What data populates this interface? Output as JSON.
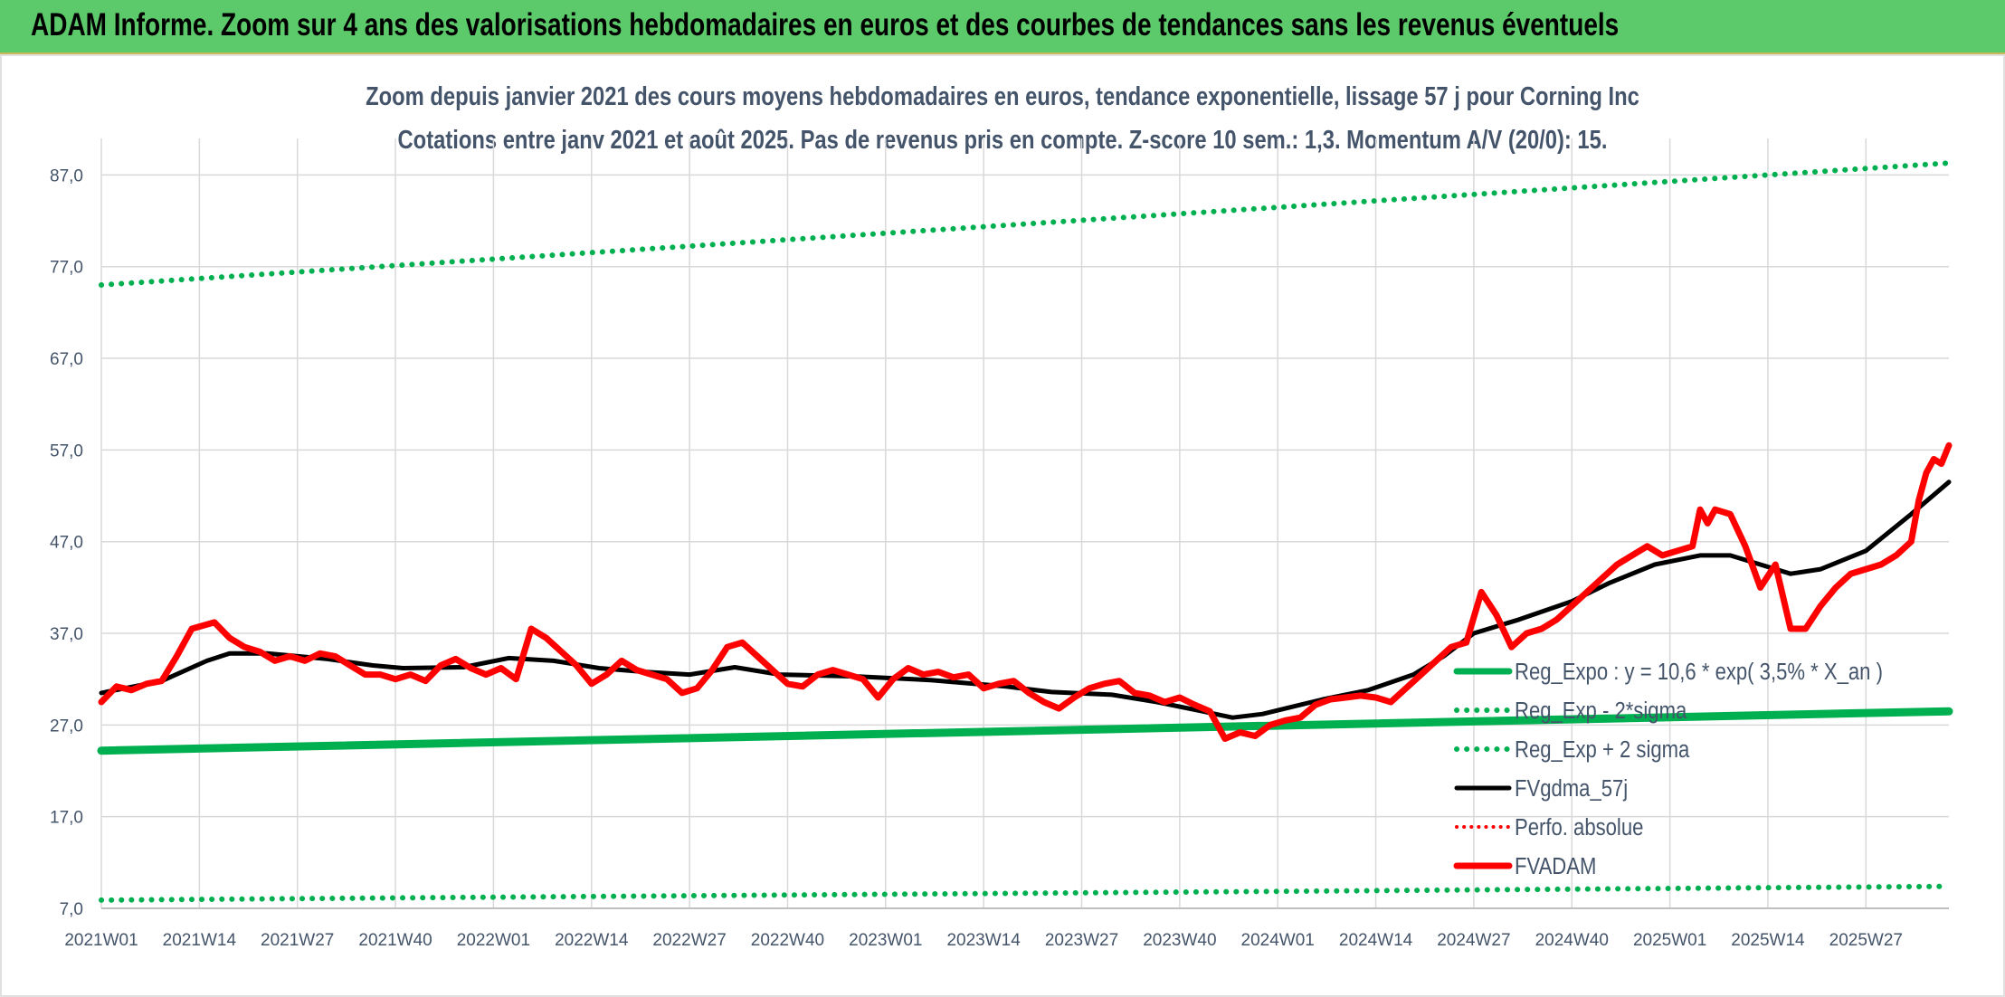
{
  "banner": {
    "title": "ADAM Informe. Zoom sur 4 ans des valorisations hebdomadaires en euros et des courbes de tendances sans les revenus éventuels"
  },
  "colors": {
    "banner": "#5cc96a",
    "reg_expo": "#00b050",
    "fvgdma": "#000000",
    "fvadam": "#ff0000",
    "perfo": "#ff0000",
    "grid": "#d9d9d9",
    "text": "#44546a"
  },
  "chart_data": {
    "type": "line",
    "title": "Zoom depuis janvier 2021 des cours moyens hebdomadaires en euros, tendance exponentielle, lissage 57 j pour Corning Inc",
    "subtitle": "Cotations entre janv 2021 et août 2025. Pas de revenus pris en compte. Z-score 10 sem.: 1,3. Momentum A/V (20/0): 15.",
    "xlabel": "",
    "ylabel": "",
    "ylim": [
      7,
      90
    ],
    "yticks": [
      7,
      17,
      27,
      37,
      47,
      57,
      67,
      77,
      87
    ],
    "ytick_labels": [
      "7,0",
      "17,0",
      "27,0",
      "37,0",
      "47,0",
      "57,0",
      "67,0",
      "77,0",
      "87,0"
    ],
    "grid": true,
    "legend_position": "bottom-right",
    "x_week_count": 245,
    "x_tick_labels": [
      "2021W01",
      "2021W14",
      "2021W27",
      "2021W40",
      "2022W01",
      "2022W14",
      "2022W27",
      "2022W40",
      "2023W01",
      "2023W14",
      "2023W27",
      "2023W40",
      "2024W01",
      "2024W14",
      "2024W27",
      "2024W40",
      "2025W01",
      "2025W14",
      "2025W27"
    ],
    "x_tick_week_index": [
      0,
      13,
      26,
      39,
      52,
      65,
      78,
      91,
      104,
      117,
      130,
      143,
      156,
      169,
      182,
      195,
      208,
      221,
      234
    ],
    "series": [
      {
        "name": "Reg_Expo : y = 10,6 * exp( 3,5% *  X_an )",
        "style": "solid-thick",
        "points": [
          [
            0,
            24.2
          ],
          [
            245,
            28.5
          ]
        ]
      },
      {
        "name": "Reg_Exp - 2*sigma",
        "style": "dotted",
        "points": [
          [
            0,
            7.9
          ],
          [
            245,
            9.4
          ]
        ]
      },
      {
        "name": "Reg_Exp + 2 sigma",
        "style": "dotted",
        "points": [
          [
            0,
            75.0
          ],
          [
            245,
            88.3
          ]
        ]
      },
      {
        "name": "FVgdma_57j",
        "style": "solid",
        "points": [
          [
            0,
            30.5
          ],
          [
            8,
            31.8
          ],
          [
            14,
            34.0
          ],
          [
            17,
            34.8
          ],
          [
            22,
            34.8
          ],
          [
            30,
            34.2
          ],
          [
            36,
            33.5
          ],
          [
            40,
            33.2
          ],
          [
            48,
            33.3
          ],
          [
            54,
            34.3
          ],
          [
            60,
            34.0
          ],
          [
            66,
            33.2
          ],
          [
            72,
            32.8
          ],
          [
            78,
            32.5
          ],
          [
            84,
            33.3
          ],
          [
            90,
            32.5
          ],
          [
            100,
            32.3
          ],
          [
            110,
            31.9
          ],
          [
            120,
            31.2
          ],
          [
            126,
            30.6
          ],
          [
            134,
            30.3
          ],
          [
            140,
            29.5
          ],
          [
            146,
            28.5
          ],
          [
            150,
            27.8
          ],
          [
            154,
            28.2
          ],
          [
            158,
            29.0
          ],
          [
            162,
            29.8
          ],
          [
            168,
            30.8
          ],
          [
            174,
            32.5
          ],
          [
            178,
            34.5
          ],
          [
            182,
            37.0
          ],
          [
            188,
            38.5
          ],
          [
            195,
            40.5
          ],
          [
            200,
            42.5
          ],
          [
            206,
            44.5
          ],
          [
            212,
            45.5
          ],
          [
            216,
            45.5
          ],
          [
            220,
            44.5
          ],
          [
            224,
            43.5
          ],
          [
            228,
            44.0
          ],
          [
            234,
            46.0
          ],
          [
            240,
            50.0
          ],
          [
            245,
            53.5
          ]
        ]
      },
      {
        "name": "Perfo. absolue",
        "style": "dotted",
        "points": []
      },
      {
        "name": "FVADAM",
        "style": "solid-thick",
        "points": [
          [
            0,
            29.5
          ],
          [
            2,
            31.2
          ],
          [
            4,
            30.8
          ],
          [
            6,
            31.5
          ],
          [
            8,
            31.8
          ],
          [
            10,
            34.5
          ],
          [
            12,
            37.5
          ],
          [
            15,
            38.2
          ],
          [
            17,
            36.5
          ],
          [
            19,
            35.5
          ],
          [
            21,
            35.0
          ],
          [
            23,
            34.0
          ],
          [
            25,
            34.5
          ],
          [
            27,
            34.0
          ],
          [
            29,
            34.8
          ],
          [
            31,
            34.5
          ],
          [
            33,
            33.5
          ],
          [
            35,
            32.5
          ],
          [
            37,
            32.5
          ],
          [
            39,
            32.0
          ],
          [
            41,
            32.5
          ],
          [
            43,
            31.8
          ],
          [
            45,
            33.5
          ],
          [
            47,
            34.2
          ],
          [
            49,
            33.2
          ],
          [
            51,
            32.5
          ],
          [
            53,
            33.2
          ],
          [
            55,
            32.0
          ],
          [
            57,
            37.5
          ],
          [
            59,
            36.5
          ],
          [
            61,
            35.0
          ],
          [
            63,
            33.5
          ],
          [
            65,
            31.5
          ],
          [
            67,
            32.5
          ],
          [
            69,
            34.0
          ],
          [
            71,
            33.0
          ],
          [
            73,
            32.5
          ],
          [
            75,
            32.0
          ],
          [
            77,
            30.5
          ],
          [
            79,
            31.0
          ],
          [
            81,
            33.0
          ],
          [
            83,
            35.5
          ],
          [
            85,
            36.0
          ],
          [
            87,
            34.5
          ],
          [
            89,
            33.0
          ],
          [
            91,
            31.5
          ],
          [
            93,
            31.2
          ],
          [
            95,
            32.5
          ],
          [
            97,
            33.0
          ],
          [
            99,
            32.5
          ],
          [
            101,
            32.0
          ],
          [
            103,
            30.0
          ],
          [
            105,
            32.0
          ],
          [
            107,
            33.2
          ],
          [
            109,
            32.5
          ],
          [
            111,
            32.8
          ],
          [
            113,
            32.2
          ],
          [
            115,
            32.5
          ],
          [
            117,
            31.0
          ],
          [
            119,
            31.5
          ],
          [
            121,
            31.8
          ],
          [
            123,
            30.5
          ],
          [
            125,
            29.5
          ],
          [
            127,
            28.8
          ],
          [
            129,
            30.0
          ],
          [
            131,
            31.0
          ],
          [
            133,
            31.5
          ],
          [
            135,
            31.8
          ],
          [
            137,
            30.5
          ],
          [
            139,
            30.2
          ],
          [
            141,
            29.5
          ],
          [
            143,
            30.0
          ],
          [
            145,
            29.2
          ],
          [
            147,
            28.5
          ],
          [
            149,
            25.5
          ],
          [
            151,
            26.2
          ],
          [
            153,
            25.8
          ],
          [
            155,
            27.0
          ],
          [
            157,
            27.5
          ],
          [
            159,
            27.8
          ],
          [
            161,
            29.2
          ],
          [
            163,
            29.8
          ],
          [
            165,
            30.0
          ],
          [
            167,
            30.2
          ],
          [
            169,
            30.0
          ],
          [
            171,
            29.5
          ],
          [
            173,
            31.0
          ],
          [
            175,
            32.5
          ],
          [
            177,
            34.0
          ],
          [
            179,
            35.5
          ],
          [
            181,
            36.0
          ],
          [
            183,
            41.5
          ],
          [
            185,
            39.0
          ],
          [
            187,
            35.5
          ],
          [
            189,
            37.0
          ],
          [
            191,
            37.5
          ],
          [
            193,
            38.5
          ],
          [
            195,
            40.0
          ],
          [
            197,
            41.5
          ],
          [
            199,
            43.0
          ],
          [
            201,
            44.5
          ],
          [
            203,
            45.5
          ],
          [
            205,
            46.5
          ],
          [
            207,
            45.5
          ],
          [
            209,
            46.0
          ],
          [
            211,
            46.5
          ],
          [
            212,
            50.5
          ],
          [
            213,
            49.0
          ],
          [
            214,
            50.5
          ],
          [
            216,
            50.0
          ],
          [
            218,
            46.5
          ],
          [
            220,
            42.0
          ],
          [
            222,
            44.5
          ],
          [
            224,
            37.5
          ],
          [
            226,
            37.5
          ],
          [
            228,
            40.0
          ],
          [
            230,
            42.0
          ],
          [
            232,
            43.5
          ],
          [
            234,
            44.0
          ],
          [
            236,
            44.5
          ],
          [
            238,
            45.5
          ],
          [
            240,
            47.0
          ],
          [
            241,
            51.5
          ],
          [
            242,
            54.5
          ],
          [
            243,
            56.0
          ],
          [
            244,
            55.5
          ],
          [
            245,
            57.5
          ]
        ]
      }
    ]
  }
}
